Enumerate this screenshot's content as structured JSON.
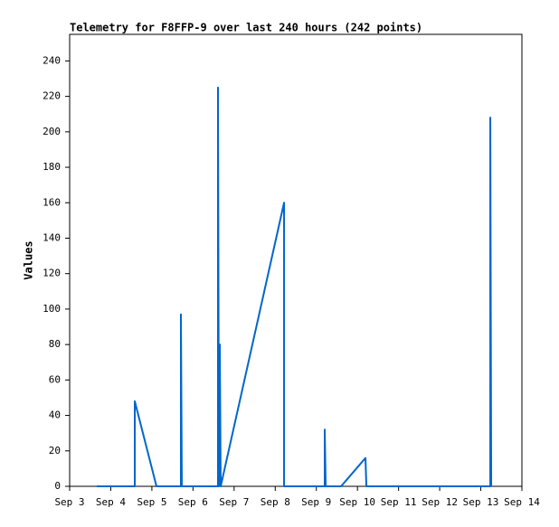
{
  "chart_data": {
    "type": "line",
    "title": "Telemetry for F8FFP-9 over last 240 hours (242 points)",
    "y_label": "Values",
    "color": "#0066cc",
    "x": [
      3.66,
      4.584,
      4.584,
      5.112,
      5.706,
      5.706,
      5.728,
      6.608,
      6.608,
      6.63,
      6.652,
      6.674,
      8.215,
      8.215,
      9.204,
      9.204,
      9.227,
      9.601,
      10.195,
      10.217,
      13.231,
      13.231,
      13.253
    ],
    "values": [
      0,
      0,
      48,
      0,
      0,
      97,
      0,
      0,
      225,
      0,
      80,
      0,
      160,
      0,
      0,
      32,
      0,
      0,
      16,
      0,
      0,
      208,
      0
    ],
    "xlim": [
      3,
      14
    ],
    "xticks": [
      {
        "value": 3,
        "label": "Sep 3"
      },
      {
        "value": 4,
        "label": "Sep 4"
      },
      {
        "value": 5,
        "label": "Sep 5"
      },
      {
        "value": 6,
        "label": "Sep 6"
      },
      {
        "value": 7,
        "label": "Sep 7"
      },
      {
        "value": 8,
        "label": "Sep 8"
      },
      {
        "value": 9,
        "label": "Sep 9"
      },
      {
        "value": 10,
        "label": "Sep 10"
      },
      {
        "value": 11,
        "label": "Sep 11"
      },
      {
        "value": 12,
        "label": "Sep 12"
      },
      {
        "value": 13,
        "label": "Sep 13"
      },
      {
        "value": 14,
        "label": "Sep 14"
      }
    ],
    "ylim": [
      0,
      255
    ],
    "yticks": [
      0,
      20,
      40,
      60,
      80,
      100,
      120,
      140,
      160,
      180,
      200,
      220,
      240
    ],
    "grid": false
  }
}
